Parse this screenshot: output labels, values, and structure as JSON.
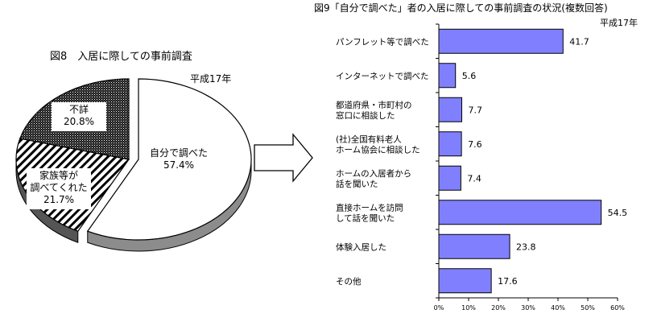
{
  "chart_data": [
    {
      "type": "pie",
      "title": "図8　入居に際しての事前調査",
      "subtitle": "平成17年",
      "slices": [
        {
          "label_lines": [
            "自分で調べた",
            "57.4%"
          ],
          "value": 57.4,
          "color": "#ffffff",
          "pattern": "none"
        },
        {
          "label_lines": [
            "家族等が",
            "調べてくれた",
            "21.7%"
          ],
          "value": 21.7,
          "color": "#ffffff",
          "pattern": "diagonal-hatch"
        },
        {
          "label_lines": [
            "不詳",
            "20.8%"
          ],
          "value": 20.8,
          "color": "#333333",
          "pattern": "dense-dots"
        }
      ]
    },
    {
      "type": "bar",
      "orientation": "horizontal",
      "title": "図9「自分で調べた」者の入居に際しての事前調査の状況(複数回答)",
      "subtitle": "平成17年",
      "categories": [
        [
          "パンフレット等で調べた"
        ],
        [
          "インターネットで調べた"
        ],
        [
          "都道府県・市町村の",
          "窓口に相談した"
        ],
        [
          "(社)全国有料老人",
          "ホーム協会に相談した"
        ],
        [
          "ホームの入居者から",
          "話を聞いた"
        ],
        [
          "直接ホームを訪問",
          "して話を聞いた"
        ],
        [
          "体験入居した"
        ],
        [
          "その他"
        ]
      ],
      "values": [
        41.7,
        5.6,
        7.7,
        7.6,
        7.4,
        54.5,
        23.8,
        17.6
      ],
      "value_labels": [
        "41.7",
        "5.6",
        "7.7",
        "7.6",
        "7.4",
        "54.5",
        "23.8",
        "17.6"
      ],
      "xlim": [
        0,
        60
      ],
      "xticks": [
        0,
        10,
        20,
        30,
        40,
        50,
        60
      ],
      "xtick_labels": [
        "0%",
        "10%",
        "20%",
        "30%",
        "40%",
        "50%",
        "60%"
      ],
      "bar_color": "#8080ff",
      "grid": false
    }
  ],
  "arrow": {
    "color": "#000000"
  }
}
